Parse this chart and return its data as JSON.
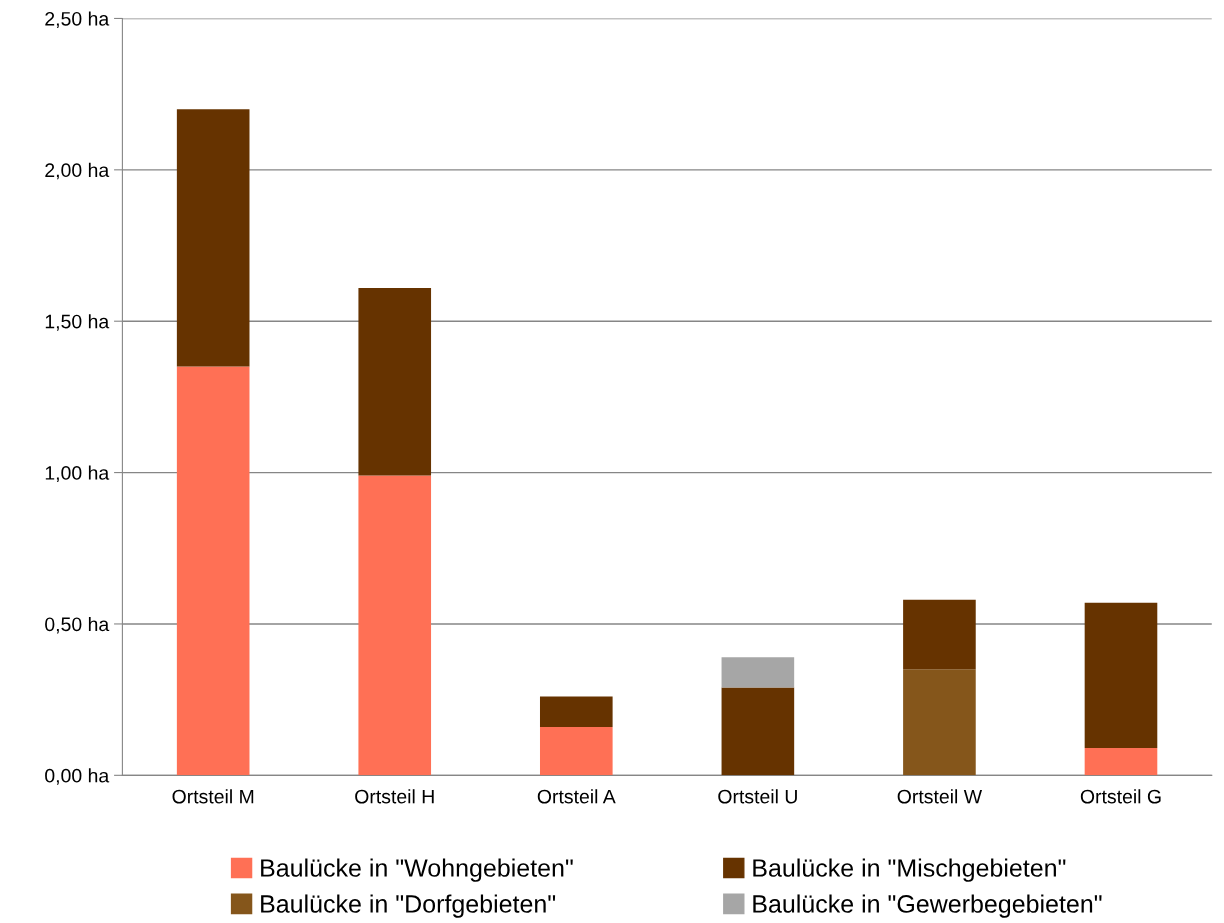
{
  "chart_data": {
    "type": "bar",
    "stacked": true,
    "categories": [
      "Ortsteil M",
      "Ortsteil H",
      "Ortsteil A",
      "Ortsteil U",
      "Ortsteil W",
      "Ortsteil G"
    ],
    "series": [
      {
        "name": "Baulücke in \"Wohngebieten\"",
        "color": "#ff7055",
        "values": [
          1.35,
          0.99,
          0.16,
          null,
          null,
          0.09
        ]
      },
      {
        "name": "Baulücke in \"Dorfgebieten\"",
        "color": "#85561b",
        "values": [
          null,
          null,
          null,
          null,
          0.35,
          null
        ]
      },
      {
        "name": "Baulücke in \"Mischgebieten\"",
        "color": "#663300",
        "values": [
          0.85,
          0.62,
          0.1,
          0.29,
          0.23,
          0.48
        ]
      },
      {
        "name": "Baulücke in \"Gewerbegebieten\"",
        "color": "#a6a6a6",
        "values": [
          null,
          null,
          null,
          0.1,
          null,
          null
        ]
      }
    ],
    "ylim": [
      0,
      2.5
    ],
    "yticks": [
      {
        "value": 0,
        "label": "0,00 ha"
      },
      {
        "value": 0.5,
        "label": "0,50 ha"
      },
      {
        "value": 1,
        "label": "1,00 ha"
      },
      {
        "value": 1.5,
        "label": "1,50 ha"
      },
      {
        "value": 2,
        "label": "2,00 ha"
      },
      {
        "value": 2.5,
        "label": "2,50 ha"
      }
    ],
    "grid": "y",
    "legend": "bottom"
  }
}
